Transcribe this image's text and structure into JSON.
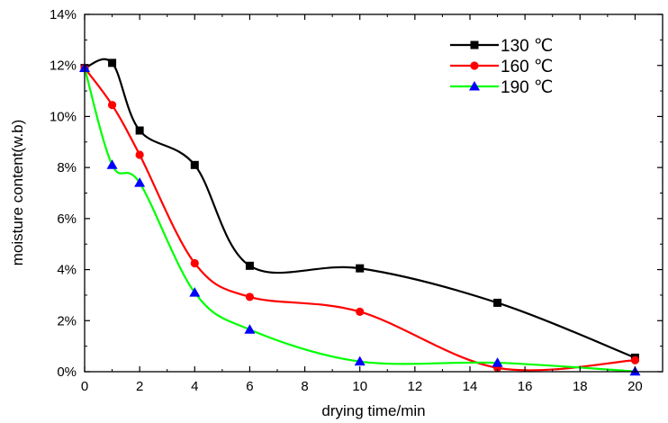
{
  "chart_data": {
    "type": "line",
    "title": "",
    "xlabel": "drying time/min",
    "ylabel": "moisture content(w.b)",
    "xlim": [
      0,
      21
    ],
    "ylim": [
      0,
      0.14
    ],
    "x_ticks": [
      0,
      2,
      4,
      6,
      8,
      10,
      12,
      14,
      16,
      18,
      20
    ],
    "y_ticks": [
      0,
      0.02,
      0.04,
      0.06,
      0.08,
      0.1,
      0.12,
      0.14
    ],
    "y_tick_labels": [
      "0%",
      "2%",
      "4%",
      "6%",
      "8%",
      "10%",
      "12%",
      "14%"
    ],
    "grid": false,
    "legend_position": "top-right",
    "x": [
      0,
      1,
      2,
      4,
      6,
      10,
      15,
      20
    ],
    "series": [
      {
        "name": "130 ℃",
        "color": "#000000",
        "marker": "square",
        "values": [
          0.119,
          0.121,
          0.0945,
          0.081,
          0.0415,
          0.0405,
          0.027,
          0.0055
        ]
      },
      {
        "name": "160 ℃",
        "color": "#ff0000",
        "marker": "circle",
        "values": [
          0.119,
          0.1045,
          0.085,
          0.0425,
          0.0293,
          0.0235,
          0.0015,
          0.0045
        ]
      },
      {
        "name": "190 ℃",
        "color": "#00ff00",
        "marker_color": "#0000ff",
        "marker": "triangle",
        "values": [
          0.119,
          0.081,
          0.074,
          0.031,
          0.0165,
          0.004,
          0.0035,
          0.0001
        ]
      }
    ]
  }
}
